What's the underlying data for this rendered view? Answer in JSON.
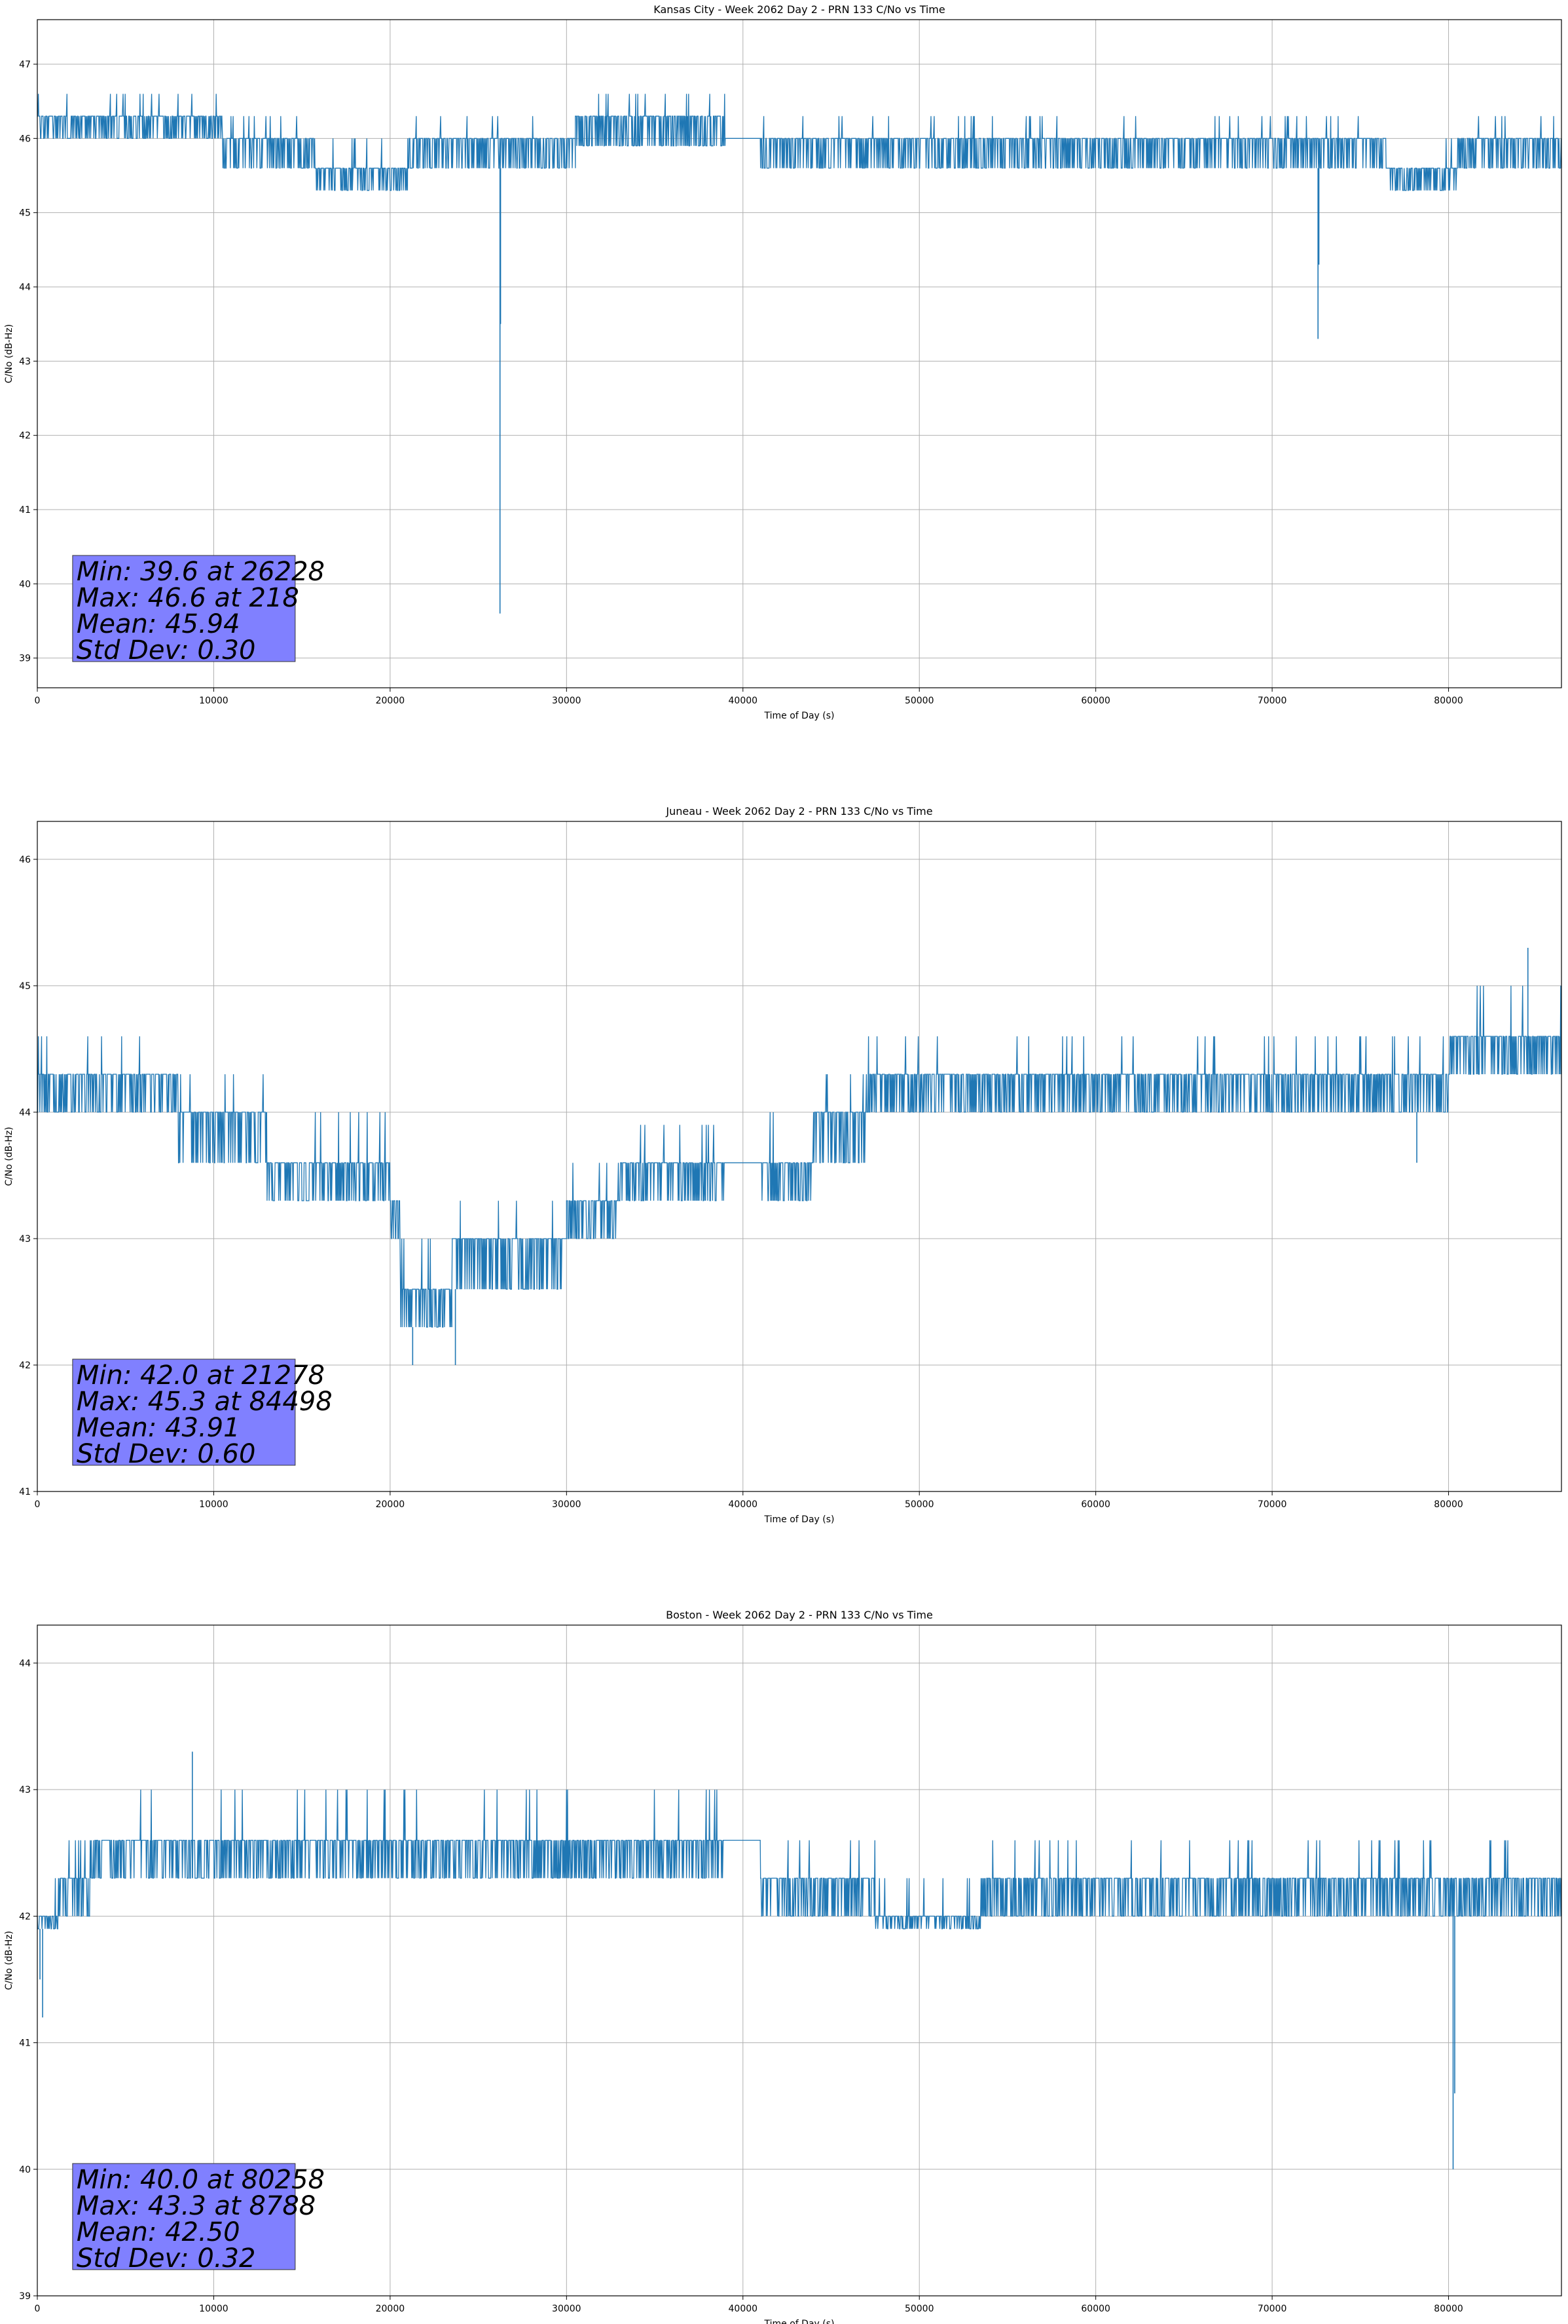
{
  "figure": {
    "line_color": "#1f77b4",
    "stats_box_color": "#8080ff"
  },
  "chart_data": [
    {
      "type": "line",
      "title": "Kansas City - Week 2062 Day 2 - PRN 133 C/No vs Time",
      "xlabel": "Time of Day (s)",
      "ylabel": "C/No (dB-Hz)",
      "xlim": [
        0,
        86400
      ],
      "ylim": [
        38.6,
        47.6
      ],
      "x_ticks": [
        0,
        10000,
        20000,
        30000,
        40000,
        50000,
        60000,
        70000,
        80000
      ],
      "y_ticks": [
        39,
        40,
        41,
        42,
        43,
        44,
        45,
        46,
        47
      ],
      "grid": true,
      "stats": [
        "Min: 39.6 at 26228",
        "Max: 46.6 at 218",
        "Mean: 45.94",
        "Std Dev: 0.30"
      ],
      "series": [
        {
          "levels": [
            [
              0,
              6000,
              46.0,
              46.3,
              46.6
            ],
            [
              6000,
              10500,
              46.0,
              46.3,
              46.6
            ],
            [
              10500,
              15800,
              45.6,
              46.0,
              46.3
            ],
            [
              15800,
              21000,
              45.3,
              45.6,
              46.0
            ],
            [
              21000,
              26228,
              45.6,
              46.0,
              46.3
            ],
            [
              26228,
              27000,
              45.6,
              46.0,
              46.3
            ],
            [
              27000,
              30500,
              45.6,
              46.0,
              46.3
            ],
            [
              30500,
              39000,
              45.9,
              46.3,
              46.6
            ],
            [
              39000,
              41000,
              46.0,
              46.0,
              46.0
            ],
            [
              41000,
              59500,
              45.6,
              46.0,
              46.3
            ],
            [
              59500,
              69000,
              45.6,
              46.0,
              46.3
            ],
            [
              69000,
              76500,
              45.6,
              46.0,
              46.3
            ],
            [
              76500,
              80500,
              45.3,
              45.6,
              46.0
            ],
            [
              80500,
              86400,
              45.6,
              46.0,
              46.3
            ]
          ],
          "dips": [
            [
              26228,
              39.6
            ],
            [
              26260,
              43.5
            ],
            [
              72600,
              43.3
            ],
            [
              72650,
              44.3
            ]
          ],
          "sample_step": 60
        }
      ]
    },
    {
      "type": "line",
      "title": "Juneau - Week 2062 Day 2 - PRN 133 C/No vs Time",
      "xlabel": "Time of Day (s)",
      "ylabel": "C/No (dB-Hz)",
      "xlim": [
        0,
        86400
      ],
      "ylim": [
        41.0,
        46.3
      ],
      "x_ticks": [
        0,
        10000,
        20000,
        30000,
        40000,
        50000,
        60000,
        70000,
        80000
      ],
      "y_ticks": [
        41,
        42,
        43,
        44,
        45,
        46
      ],
      "grid": true,
      "stats": [
        "Min: 42.0 at 21278",
        "Max: 45.3 at 84498",
        "Mean: 43.91",
        "Std Dev: 0.60"
      ],
      "series": [
        {
          "levels": [
            [
              0,
              1000,
              44.0,
              44.3,
              44.6
            ],
            [
              1000,
              8000,
              44.0,
              44.3,
              44.6
            ],
            [
              8000,
              13000,
              43.6,
              44.0,
              44.3
            ],
            [
              13000,
              20000,
              43.3,
              43.6,
              44.0
            ],
            [
              20000,
              20600,
              43.0,
              43.3,
              43.6
            ],
            [
              20600,
              23500,
              42.3,
              42.6,
              43.0
            ],
            [
              23500,
              30000,
              42.6,
              43.0,
              43.3
            ],
            [
              30000,
              33000,
              43.0,
              43.3,
              43.6
            ],
            [
              33000,
              39000,
              43.3,
              43.6,
              43.9
            ],
            [
              39000,
              41000,
              43.6,
              43.6,
              43.6
            ],
            [
              41000,
              44000,
              43.3,
              43.6,
              44.0
            ],
            [
              44000,
              47000,
              43.6,
              44.0,
              44.3
            ],
            [
              47000,
              52000,
              44.0,
              44.3,
              44.6
            ],
            [
              52000,
              62000,
              44.0,
              44.3,
              44.6
            ],
            [
              62000,
              74000,
              44.0,
              44.3,
              44.6
            ],
            [
              74000,
              80000,
              44.0,
              44.3,
              44.6
            ],
            [
              80000,
              86400,
              44.3,
              44.6,
              45.0
            ]
          ],
          "dips": [
            [
              21278,
              42.0
            ],
            [
              23700,
              42.0
            ],
            [
              78200,
              43.6
            ],
            [
              84498,
              45.3
            ]
          ],
          "sample_step": 60
        }
      ]
    },
    {
      "type": "line",
      "title": "Boston - Week 2062 Day 2 - PRN 133 C/No vs Time",
      "xlabel": "Time of Day (s)",
      "ylabel": "C/No (dB-Hz)",
      "xlim": [
        0,
        86400
      ],
      "ylim": [
        39.0,
        44.3
      ],
      "x_ticks": [
        0,
        10000,
        20000,
        30000,
        40000,
        50000,
        60000,
        70000,
        80000
      ],
      "y_ticks": [
        39,
        40,
        41,
        42,
        43,
        44
      ],
      "grid": true,
      "stats": [
        "Min: 40.0 at 80258",
        "Max: 43.3 at 8788",
        "Mean: 42.50",
        "Std Dev: 0.32"
      ],
      "series": [
        {
          "levels": [
            [
              0,
              1200,
              41.9,
              42.0,
              42.3
            ],
            [
              1200,
              3000,
              42.0,
              42.3,
              42.6
            ],
            [
              3000,
              5500,
              42.3,
              42.6,
              43.0
            ],
            [
              5500,
              20000,
              42.3,
              42.6,
              43.0
            ],
            [
              20000,
              27000,
              42.3,
              42.6,
              43.0
            ],
            [
              27000,
              39000,
              42.3,
              42.6,
              43.0
            ],
            [
              39000,
              41000,
              42.6,
              42.6,
              42.6
            ],
            [
              41000,
              47500,
              42.0,
              42.3,
              42.6
            ],
            [
              47500,
              53500,
              41.9,
              42.0,
              42.3
            ],
            [
              53500,
              70000,
              42.0,
              42.3,
              42.6
            ],
            [
              70000,
              80000,
              42.0,
              42.3,
              42.6
            ],
            [
              80000,
              86400,
              42.0,
              42.3,
              42.6
            ]
          ],
          "dips": [
            [
              150,
              41.5
            ],
            [
              300,
              41.2
            ],
            [
              80258,
              40.0
            ],
            [
              80350,
              40.6
            ],
            [
              8788,
              43.3
            ]
          ],
          "sample_step": 60
        }
      ]
    }
  ]
}
